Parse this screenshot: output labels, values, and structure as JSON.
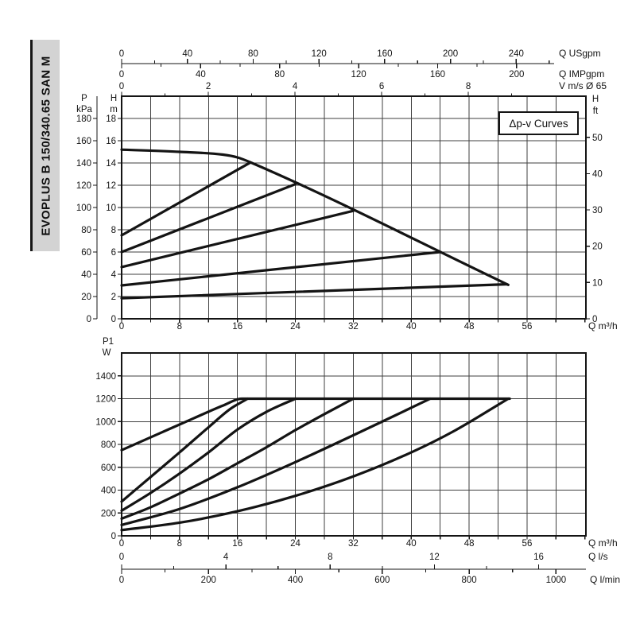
{
  "sidebar": {
    "model_label": "EVOPLUS B 150/340.65 SAN M"
  },
  "colors": {
    "ink": "#141414",
    "grid": "#3f3f3f",
    "sidebar_bg": "#d3d3d3",
    "background": "#ffffff"
  },
  "chart_data": [
    {
      "id": "head-vs-flow",
      "type": "line",
      "title": "Δp-v Curves",
      "legend_position": "top-right",
      "x_axis": {
        "label": "Q m³/h",
        "tick_labels": [
          0,
          8,
          16,
          24,
          32,
          40,
          48,
          56
        ],
        "tick_step": 4,
        "grid_step": 4,
        "range": [
          0,
          64.13
        ]
      },
      "y_axis": {
        "label_lines": [
          "H",
          "m"
        ],
        "tick_labels": [
          0,
          2,
          4,
          6,
          8,
          10,
          12,
          14,
          16,
          18
        ],
        "grid_step": 2,
        "range": [
          0,
          20
        ]
      },
      "y_axis_kpa": {
        "label_lines": [
          "P",
          "kPa"
        ],
        "tick_labels": [
          0,
          20,
          40,
          60,
          80,
          100,
          120,
          140,
          160,
          180
        ],
        "m_per_unit": 0.1
      },
      "y_axis_right": {
        "label_lines": [
          "H",
          "ft"
        ],
        "tick_labels": [
          0,
          10,
          20,
          30,
          40,
          50
        ],
        "m_per_unit": 0.326
      },
      "top_axes": [
        {
          "label": "Q USgpm",
          "tick_labels": [
            0,
            40,
            80,
            120,
            160,
            200,
            240
          ],
          "minor_step": 20,
          "m3h_per_unit": 0.2271
        },
        {
          "label": "Q IMPgpm",
          "tick_labels": [
            0,
            40,
            80,
            120,
            160,
            200
          ],
          "minor_step": 20,
          "m3h_per_unit": 0.2728
        },
        {
          "label": "V m/s Ø 65",
          "tick_labels": [
            0,
            2,
            4,
            6,
            8
          ],
          "minor_step": 1,
          "m3h_per_unit": 5.986
        }
      ],
      "series": [
        {
          "name": "max-speed-head-curve",
          "points": [
            [
              0,
              15.2
            ],
            [
              8,
              15.0
            ],
            [
              14,
              14.75
            ],
            [
              16,
              14.5
            ],
            [
              18,
              14.0
            ],
            [
              53.4,
              3.05
            ]
          ]
        },
        {
          "name": "dpv-curve-1",
          "points": [
            [
              0,
              7.5
            ],
            [
              17.8,
              14.05
            ]
          ]
        },
        {
          "name": "dpv-curve-2",
          "points": [
            [
              0,
              6.0
            ],
            [
              24,
              12.1
            ]
          ]
        },
        {
          "name": "dpv-curve-3",
          "points": [
            [
              0,
              4.65
            ],
            [
              32,
              9.7
            ]
          ]
        },
        {
          "name": "dpv-curve-4",
          "points": [
            [
              0,
              3.0
            ],
            [
              44,
              6.0
            ]
          ]
        },
        {
          "name": "dpv-curve-5",
          "points": [
            [
              0,
              1.85
            ],
            [
              53.2,
              3.1
            ]
          ]
        }
      ]
    },
    {
      "id": "power-vs-flow",
      "type": "line",
      "x_axis": {
        "label": "Q m³/h",
        "tick_labels": [
          0,
          8,
          16,
          24,
          32,
          40,
          48,
          56
        ],
        "tick_step": 4,
        "grid_step": 4,
        "range": [
          0,
          64.13
        ]
      },
      "y_axis": {
        "label_lines": [
          "P1",
          "W"
        ],
        "tick_labels": [
          0,
          200,
          400,
          600,
          800,
          1000,
          1200,
          1400
        ],
        "grid_step": 200,
        "range": [
          0,
          1600
        ]
      },
      "bottom_axes": [
        {
          "label": "Q l/s",
          "tick_labels": [
            0,
            4,
            8,
            12,
            16
          ],
          "minor_step": 2,
          "m3h_per_unit": 3.6
        },
        {
          "label": "Q l/min",
          "tick_labels": [
            0,
            200,
            400,
            600,
            800,
            1000
          ],
          "minor_step": 100,
          "m3h_per_unit": 0.06
        }
      ],
      "series": [
        {
          "name": "power-max-speed",
          "points": [
            [
              0,
              750
            ],
            [
              5,
              890
            ],
            [
              10,
              1030
            ],
            [
              14,
              1140
            ],
            [
              16.6,
              1200
            ],
            [
              53.6,
              1200
            ]
          ]
        },
        {
          "name": "power-curve-2",
          "points": [
            [
              0,
              300
            ],
            [
              4,
              515
            ],
            [
              8,
              730
            ],
            [
              12,
              950
            ],
            [
              15,
              1110
            ],
            [
              17.4,
              1200
            ]
          ]
        },
        {
          "name": "power-curve-3",
          "points": [
            [
              0,
              220
            ],
            [
              4,
              375
            ],
            [
              8,
              545
            ],
            [
              12,
              730
            ],
            [
              16,
              930
            ],
            [
              20,
              1085
            ],
            [
              24,
              1200
            ]
          ]
        },
        {
          "name": "power-curve-4",
          "points": [
            [
              0,
              150
            ],
            [
              4,
              250
            ],
            [
              8,
              370
            ],
            [
              12,
              495
            ],
            [
              16,
              635
            ],
            [
              20,
              775
            ],
            [
              24,
              925
            ],
            [
              28,
              1065
            ],
            [
              32,
              1200
            ]
          ]
        },
        {
          "name": "power-curve-5",
          "points": [
            [
              0,
              95
            ],
            [
              8,
              235
            ],
            [
              16,
              425
            ],
            [
              24,
              645
            ],
            [
              32,
              880
            ],
            [
              38,
              1060
            ],
            [
              42.6,
              1200
            ]
          ]
        },
        {
          "name": "power-curve-6",
          "points": [
            [
              0,
              50
            ],
            [
              8,
              115
            ],
            [
              16,
              215
            ],
            [
              24,
              350
            ],
            [
              32,
              520
            ],
            [
              40,
              730
            ],
            [
              46,
              920
            ],
            [
              53.4,
              1200
            ]
          ]
        }
      ]
    }
  ]
}
